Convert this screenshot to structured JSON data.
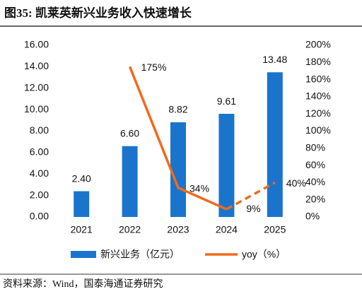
{
  "chart_data": {
    "type": "bar",
    "title": "图35:  凯莱英新兴业务收入快速增长",
    "source": "资料来源：Wind，国泰海通证券研究",
    "categories": [
      "2021",
      "2022",
      "2023",
      "2024",
      "2025"
    ],
    "series": [
      {
        "name": "新兴业务（亿元）",
        "type": "bar",
        "color": "#1a74cc",
        "values": [
          2.4,
          6.6,
          8.82,
          9.61,
          13.48
        ],
        "value_labels": [
          "2.40",
          "6.60",
          "8.82",
          "9.61",
          "13.48"
        ]
      },
      {
        "name": "yoy（%）",
        "type": "line",
        "axis": "y2",
        "color": "#f26a1b",
        "values": [
          null,
          175,
          34,
          9,
          40
        ],
        "value_labels": [
          null,
          "175%",
          "34%",
          "9%",
          "40%"
        ],
        "dashed_from_index": 3
      }
    ],
    "ylim": [
      0,
      16
    ],
    "yticks": [
      {
        "value": 0,
        "label": "0.00"
      },
      {
        "value": 2,
        "label": "2.00"
      },
      {
        "value": 4,
        "label": "4.00"
      },
      {
        "value": 6,
        "label": "6.00"
      },
      {
        "value": 8,
        "label": "8.00"
      },
      {
        "value": 10,
        "label": "10.00"
      },
      {
        "value": 12,
        "label": "12.00"
      },
      {
        "value": 14,
        "label": "14.00"
      },
      {
        "value": 16,
        "label": "16.00"
      }
    ],
    "y2lim": [
      0,
      200
    ],
    "y2ticks": [
      {
        "value": 0,
        "label": "0%"
      },
      {
        "value": 20,
        "label": "20%"
      },
      {
        "value": 40,
        "label": "40%"
      },
      {
        "value": 60,
        "label": "60%"
      },
      {
        "value": 80,
        "label": "80%"
      },
      {
        "value": 100,
        "label": "100%"
      },
      {
        "value": 120,
        "label": "120%"
      },
      {
        "value": 140,
        "label": "140%"
      },
      {
        "value": 160,
        "label": "160%"
      },
      {
        "value": 180,
        "label": "180%"
      },
      {
        "value": 200,
        "label": "200%"
      }
    ],
    "grid": false
  }
}
